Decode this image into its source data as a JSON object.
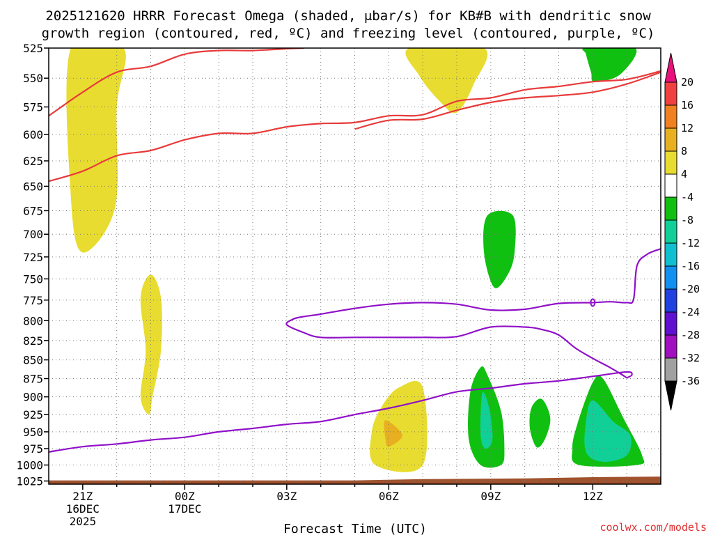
{
  "chart_data": {
    "type": "heatmap",
    "title_lines": [
      "2025121620 HRRR Forecast Omega (shaded, μbar/s) for KB#B with dendritic snow",
      "growth region (contoured, red, ºC) and freezing level (contoured, purple, ºC)"
    ],
    "xlabel": "Forecast Time (UTC)",
    "ylabel": "",
    "x_range_hours": [
      -1,
      17
    ],
    "y_range_hPa": [
      525,
      1030
    ],
    "y_scale": "log-pressure (inverted)",
    "y_ticks": [
      525,
      550,
      575,
      600,
      625,
      650,
      675,
      700,
      725,
      750,
      775,
      800,
      825,
      850,
      875,
      900,
      925,
      950,
      975,
      1000,
      1025
    ],
    "x_ticks": [
      {
        "hour": 0,
        "lines": [
          "21Z",
          "16DEC",
          "2025"
        ]
      },
      {
        "hour": 3,
        "lines": [
          "00Z",
          "17DEC"
        ]
      },
      {
        "hour": 6,
        "lines": [
          "03Z"
        ]
      },
      {
        "hour": 9,
        "lines": [
          "06Z"
        ]
      },
      {
        "hour": 12,
        "lines": [
          "09Z"
        ]
      },
      {
        "hour": 15,
        "lines": [
          "12Z"
        ]
      }
    ],
    "grid": true,
    "colorbar": {
      "labels": [
        "20",
        "16",
        "12",
        "8",
        "4",
        "-4",
        "-8",
        "-12",
        "-16",
        "-20",
        "-24",
        "-28",
        "-32",
        "-36"
      ],
      "colors": [
        "#e8127a",
        "#f04040",
        "#f08020",
        "#e8b020",
        "#e8dc30",
        "#ffffff",
        "#10c010",
        "#10d098",
        "#10c0d0",
        "#1090f0",
        "#2040e0",
        "#6010d0",
        "#a010c0",
        "#a0a0a0",
        "#000000"
      ]
    },
    "omega_fields": [
      {
        "level": "4",
        "color": "#e8dc30",
        "pts": [
          [
            -0.35,
            525
          ],
          [
            1.2,
            525
          ],
          [
            1.0,
            575
          ],
          [
            0.95,
            672
          ],
          [
            0,
            720
          ],
          [
            -0.35,
            660
          ]
        ]
      },
      {
        "level": "4",
        "color": "#e8dc30",
        "pts": [
          [
            1.7,
            772
          ],
          [
            2.0,
            745
          ],
          [
            2.3,
            772
          ],
          [
            2.3,
            838
          ],
          [
            2.05,
            900
          ],
          [
            1.95,
            925
          ],
          [
            1.7,
            900
          ],
          [
            1.85,
            838
          ]
        ]
      },
      {
        "level": "4",
        "color": "#e8dc30",
        "pts": [
          [
            9.6,
            525
          ],
          [
            11.8,
            525
          ],
          [
            11.5,
            555
          ],
          [
            11.0,
            580
          ],
          [
            10.5,
            570
          ],
          [
            9.9,
            548
          ]
        ]
      },
      {
        "level": "4",
        "color": "#e8dc30",
        "pts": [
          [
            8.8,
            913
          ],
          [
            9.3,
            887
          ],
          [
            10.0,
            887
          ],
          [
            10.0,
            1000
          ],
          [
            8.6,
            1000
          ],
          [
            8.5,
            950
          ]
        ]
      },
      {
        "level": "8",
        "color": "#e8b020",
        "pts": [
          [
            8.9,
            933
          ],
          [
            9.4,
            955
          ],
          [
            9.0,
            972
          ],
          [
            8.9,
            960
          ]
        ]
      },
      {
        "level": "4",
        "color": "#e8dc30",
        "pts": [
          [
            11.8,
            895
          ],
          [
            11.95,
            880
          ],
          [
            12.1,
            900
          ],
          [
            12.05,
            945
          ],
          [
            11.95,
            960
          ],
          [
            11.8,
            940
          ]
        ]
      },
      {
        "level": "-4",
        "color": "#10c010",
        "pts": [
          [
            11.9,
            680
          ],
          [
            12.65,
            680
          ],
          [
            12.7,
            720
          ],
          [
            12.5,
            745
          ],
          [
            12.1,
            760
          ],
          [
            11.8,
            720
          ]
        ]
      },
      {
        "level": "-4",
        "color": "#10c010",
        "pts": [
          [
            11.4,
            893
          ],
          [
            11.7,
            860
          ],
          [
            11.9,
            870
          ],
          [
            12.3,
            920
          ],
          [
            12.4,
            975
          ],
          [
            12.3,
            1000
          ],
          [
            11.7,
            1000
          ],
          [
            11.35,
            960
          ]
        ]
      },
      {
        "level": "-8",
        "color": "#10d098",
        "pts": [
          [
            11.75,
            895
          ],
          [
            11.95,
            915
          ],
          [
            12.05,
            960
          ],
          [
            11.85,
            975
          ],
          [
            11.7,
            955
          ]
        ]
      },
      {
        "level": "-4",
        "color": "#10c010",
        "pts": [
          [
            13.2,
            915
          ],
          [
            13.5,
            903
          ],
          [
            13.75,
            930
          ],
          [
            13.6,
            960
          ],
          [
            13.35,
            973
          ],
          [
            13.15,
            945
          ]
        ]
      },
      {
        "level": "-4",
        "color": "#10c010",
        "pts": [
          [
            14.8,
            525
          ],
          [
            16.25,
            525
          ],
          [
            15.8,
            547
          ],
          [
            15.05,
            553
          ],
          [
            14.95,
            545
          ],
          [
            14.8,
            530
          ]
        ]
      },
      {
        "level": "-4",
        "color": "#10c010",
        "pts": [
          [
            14.55,
            938
          ],
          [
            15.0,
            880
          ],
          [
            15.3,
            875
          ],
          [
            15.9,
            930
          ],
          [
            16.45,
            985
          ],
          [
            16.3,
            1000
          ],
          [
            14.6,
            1000
          ],
          [
            14.4,
            975
          ]
        ]
      },
      {
        "level": "-8",
        "color": "#10d098",
        "pts": [
          [
            14.8,
            935
          ],
          [
            15.0,
            905
          ],
          [
            15.6,
            935
          ],
          [
            16.1,
            955
          ],
          [
            16.0,
            985
          ],
          [
            15.3,
            995
          ],
          [
            14.8,
            980
          ]
        ]
      }
    ],
    "red_contours": [
      {
        "label": "dendritic upper",
        "pts": [
          [
            -1,
            583
          ],
          [
            0,
            562
          ],
          [
            1,
            545
          ],
          [
            2,
            540
          ],
          [
            3,
            530
          ],
          [
            4,
            527
          ],
          [
            5,
            527
          ],
          [
            6,
            525.5
          ],
          [
            6.5,
            525
          ]
        ]
      },
      {
        "label": "dendritic middle",
        "pts": [
          [
            8,
            595
          ],
          [
            9,
            587
          ],
          [
            10,
            586
          ],
          [
            11,
            578
          ],
          [
            12,
            571
          ],
          [
            13,
            567
          ],
          [
            14,
            565
          ],
          [
            15,
            562
          ],
          [
            16,
            555
          ],
          [
            17,
            545
          ]
        ]
      },
      {
        "label": "dendritic lower",
        "pts": [
          [
            -1,
            645
          ],
          [
            0,
            635
          ],
          [
            1,
            620
          ],
          [
            2,
            615
          ],
          [
            3,
            605
          ],
          [
            4,
            599
          ],
          [
            5,
            599
          ],
          [
            6,
            593
          ],
          [
            7,
            590
          ],
          [
            8,
            589
          ],
          [
            9,
            583
          ],
          [
            10,
            582
          ],
          [
            11,
            570
          ],
          [
            12,
            567
          ],
          [
            13,
            560
          ],
          [
            14,
            557
          ],
          [
            15,
            553
          ],
          [
            16,
            551
          ],
          [
            17,
            544
          ]
        ]
      }
    ],
    "purple_contours": [
      {
        "label": "freezing level lower",
        "pts": [
          [
            -1,
            980
          ],
          [
            0,
            972
          ],
          [
            1,
            968
          ],
          [
            2,
            962
          ],
          [
            3,
            958
          ],
          [
            4,
            950
          ],
          [
            5,
            945
          ],
          [
            6,
            939
          ],
          [
            7,
            935
          ],
          [
            8,
            925
          ],
          [
            9,
            916
          ],
          [
            10,
            905
          ],
          [
            11,
            893
          ],
          [
            12,
            888
          ],
          [
            13,
            882
          ],
          [
            14,
            878
          ],
          [
            15,
            872
          ],
          [
            16,
            866
          ],
          [
            16.15,
            870
          ],
          [
            16,
            874
          ]
        ]
      },
      {
        "label": "freezing level loop",
        "pts": [
          [
            16,
            874
          ],
          [
            15.8,
            868
          ],
          [
            15.5,
            860
          ],
          [
            15,
            848
          ],
          [
            14.5,
            835
          ],
          [
            14,
            818
          ],
          [
            13.5,
            811
          ],
          [
            13,
            808
          ],
          [
            12,
            808
          ],
          [
            11,
            820
          ],
          [
            10,
            821
          ],
          [
            9,
            821
          ],
          [
            8,
            821
          ],
          [
            7,
            821
          ],
          [
            6.5,
            815
          ],
          [
            6,
            805
          ],
          [
            6.2,
            798
          ],
          [
            6.5,
            795
          ],
          [
            7,
            792
          ],
          [
            8,
            785
          ],
          [
            9,
            780
          ],
          [
            10,
            778
          ],
          [
            11,
            780
          ],
          [
            12,
            787
          ],
          [
            13,
            786
          ],
          [
            14,
            779
          ],
          [
            15,
            778
          ],
          [
            15.5,
            777
          ],
          [
            16,
            778
          ],
          [
            16.2,
            774
          ],
          [
            16.3,
            735
          ],
          [
            16.6,
            722
          ],
          [
            17,
            716
          ]
        ]
      },
      {
        "label": "0 marker",
        "pts": [
          [
            15.0,
            778
          ],
          [
            15.03,
            778
          ]
        ]
      }
    ],
    "ground": {
      "color": "#a0522d",
      "pts": [
        [
          -1,
          1030
        ],
        [
          -1,
          1024
        ],
        [
          8,
          1024
        ],
        [
          10,
          1022
        ],
        [
          13,
          1021
        ],
        [
          15,
          1019
        ],
        [
          17,
          1018
        ],
        [
          17,
          1030
        ]
      ]
    },
    "credit": "coolwx.com/models"
  }
}
